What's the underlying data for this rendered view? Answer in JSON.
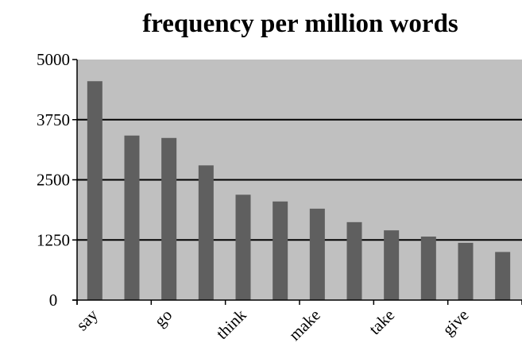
{
  "colors": {
    "plot_background": "#c0c0c0",
    "bar": "#5f5f5f",
    "gridline": "#000000",
    "page_background": "#ffffff"
  },
  "chart_data": {
    "type": "bar",
    "title": "frequency per million words",
    "xlabel": "",
    "ylabel": "",
    "categories": [
      "say",
      "",
      "go",
      "",
      "think",
      "",
      "make",
      "",
      "take",
      "",
      "give",
      ""
    ],
    "values": [
      4550,
      3420,
      3370,
      2800,
      2190,
      2050,
      1900,
      1620,
      1450,
      1320,
      1190,
      1000
    ],
    "ylim": [
      0,
      5000
    ],
    "yticks": [
      "0",
      "1250",
      "2500",
      "3750",
      "5000"
    ],
    "ytick_values": [
      0,
      1250,
      2500,
      3750,
      5000
    ],
    "grid": true,
    "legend": "none"
  }
}
